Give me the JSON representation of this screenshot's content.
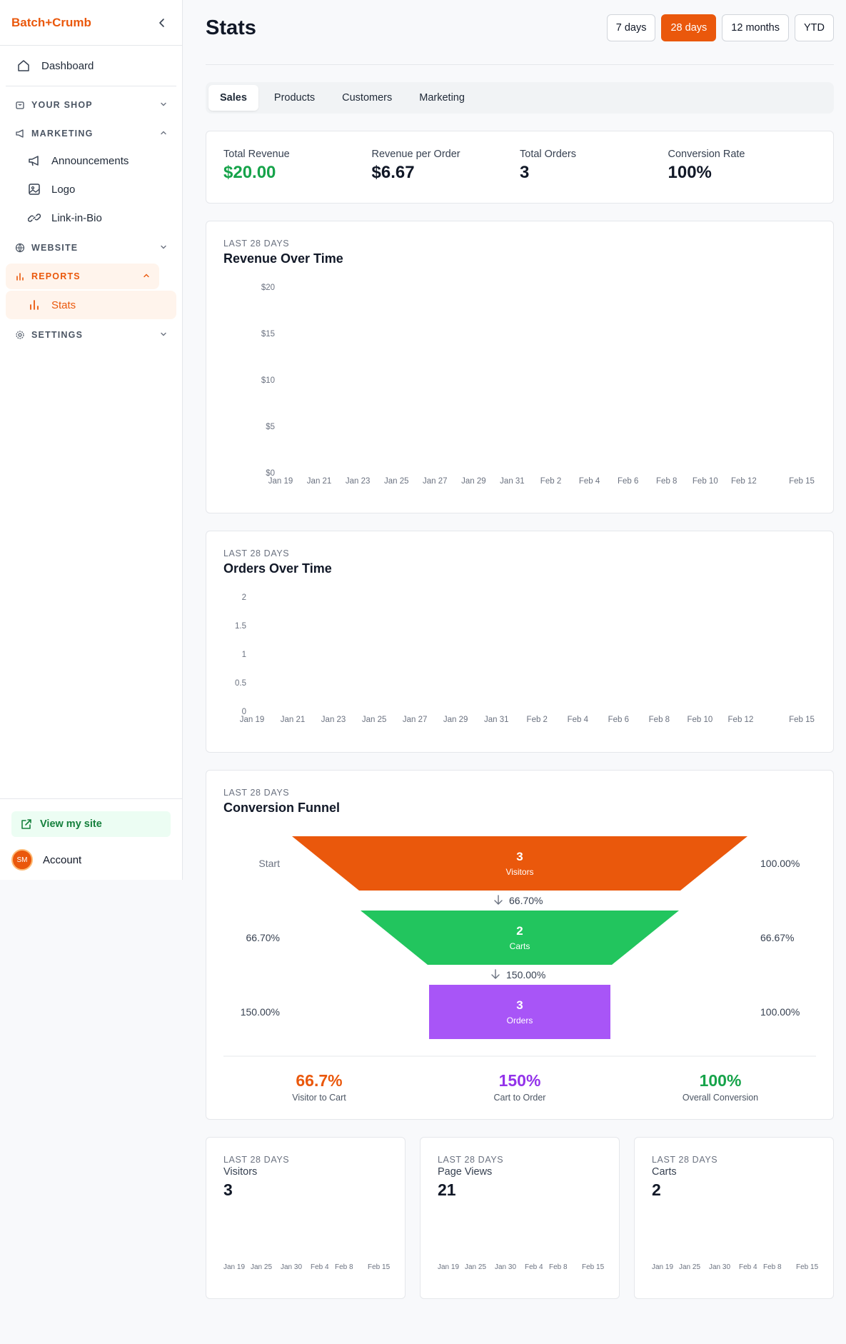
{
  "app": {
    "brand": "Batch+Crumb"
  },
  "sidebar": {
    "dashboard": "Dashboard",
    "sections": {
      "your_shop": "YOUR SHOP",
      "marketing": "MARKETING",
      "website": "WEBSITE",
      "reports": "REPORTS",
      "settings": "SETTINGS"
    },
    "marketing_items": [
      "Announcements",
      "Logo",
      "Link-in-Bio"
    ],
    "reports_items": [
      "Stats"
    ],
    "view_site": "View my site",
    "account": "Account",
    "avatar_initials": "SM"
  },
  "header": {
    "title": "Stats",
    "ranges": [
      "7 days",
      "28 days",
      "12 months",
      "YTD"
    ],
    "active_range": "28 days"
  },
  "tabs": [
    "Sales",
    "Products",
    "Customers",
    "Marketing"
  ],
  "kpis": [
    {
      "label": "Total Revenue",
      "value": "$20.00"
    },
    {
      "label": "Revenue per Order",
      "value": "$6.67"
    },
    {
      "label": "Total Orders",
      "value": "3"
    },
    {
      "label": "Conversion Rate",
      "value": "100%"
    }
  ],
  "revenue_chart": {
    "kicker": "LAST 28 DAYS",
    "title": "Revenue Over Time",
    "y_ticks": [
      "$20",
      "$15",
      "$10",
      "$5",
      "$0"
    ],
    "x_ticks": [
      "Jan 19",
      "Jan 21",
      "Jan 23",
      "Jan 25",
      "Jan 27",
      "Jan 29",
      "Jan 31",
      "Feb 2",
      "Feb 4",
      "Feb 6",
      "Feb 8",
      "Feb 10",
      "Feb 12",
      "Feb 15"
    ]
  },
  "orders_chart": {
    "kicker": "LAST 28 DAYS",
    "title": "Orders Over Time",
    "y_ticks": [
      "2",
      "1.5",
      "1",
      "0.5",
      "0"
    ],
    "x_ticks": [
      "Jan 19",
      "Jan 21",
      "Jan 23",
      "Jan 25",
      "Jan 27",
      "Jan 29",
      "Jan 31",
      "Feb 2",
      "Feb 4",
      "Feb 6",
      "Feb 8",
      "Feb 10",
      "Feb 12",
      "Feb 15"
    ]
  },
  "funnel": {
    "kicker": "LAST 28 DAYS",
    "title": "Conversion Funnel",
    "stages": [
      {
        "value": "3",
        "label": "Visitors",
        "left": "Start",
        "right": "100.00%",
        "color": "#ea580c"
      },
      {
        "value": "2",
        "label": "Carts",
        "left": "66.70%",
        "right": "66.67%",
        "color": "#22c55e"
      },
      {
        "value": "3",
        "label": "Orders",
        "left": "150.00%",
        "right": "100.00%",
        "color": "#a855f7"
      }
    ],
    "steps": [
      "66.70%",
      "150.00%"
    ],
    "summary": [
      {
        "value": "66.7%",
        "label": "Visitor to Cart",
        "color": "#ea580c"
      },
      {
        "value": "150%",
        "label": "Cart to Order",
        "color": "#9333ea"
      },
      {
        "value": "100%",
        "label": "Overall Conversion",
        "color": "#16a34a"
      }
    ]
  },
  "mini_cards": [
    {
      "kicker": "LAST 28 DAYS",
      "name": "Visitors",
      "value": "3"
    },
    {
      "kicker": "LAST 28 DAYS",
      "name": "Page Views",
      "value": "21"
    },
    {
      "kicker": "LAST 28 DAYS",
      "name": "Carts",
      "value": "2"
    }
  ],
  "mini_x_ticks": [
    "Jan 19",
    "Jan 25",
    "Jan 30",
    "Feb 4",
    "Feb 8",
    "Feb 15"
  ],
  "chart_data": [
    {
      "type": "line",
      "title": "Revenue Over Time",
      "x": [
        "Jan 19",
        "Jan 21",
        "Jan 23",
        "Jan 25",
        "Jan 27",
        "Jan 29",
        "Jan 31",
        "Feb 2",
        "Feb 4",
        "Feb 6",
        "Feb 8",
        "Feb 10",
        "Feb 12",
        "Feb 15"
      ],
      "ylim": [
        0,
        20
      ],
      "series": []
    },
    {
      "type": "line",
      "title": "Orders Over Time",
      "x": [
        "Jan 19",
        "Jan 21",
        "Jan 23",
        "Jan 25",
        "Jan 27",
        "Jan 29",
        "Jan 31",
        "Feb 2",
        "Feb 4",
        "Feb 6",
        "Feb 8",
        "Feb 10",
        "Feb 12",
        "Feb 15"
      ],
      "ylim": [
        0,
        2
      ],
      "series": []
    },
    {
      "type": "bar",
      "title": "Conversion Funnel",
      "categories": [
        "Visitors",
        "Carts",
        "Orders"
      ],
      "values": [
        3,
        2,
        3
      ]
    }
  ]
}
